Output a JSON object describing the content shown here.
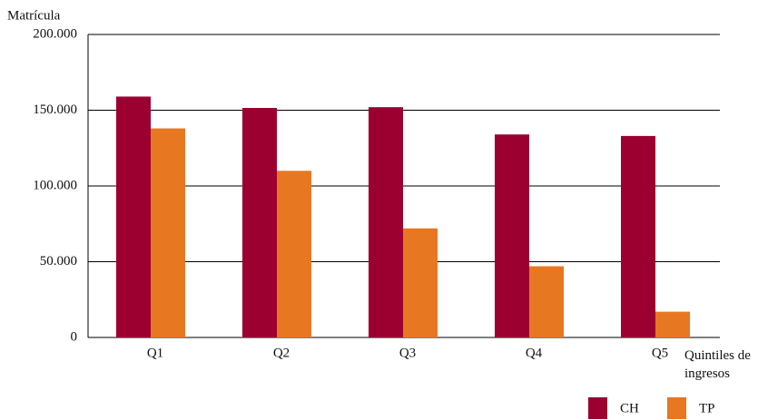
{
  "chart_data": {
    "type": "bar",
    "y_label": "Matrícula",
    "x_label": "Quintiles de ingresos",
    "categories": [
      "Q1",
      "Q2",
      "Q3",
      "Q4",
      "Q5"
    ],
    "series": [
      {
        "name": "CH",
        "color": "#9b0031",
        "values": [
          159000,
          151500,
          152000,
          134000,
          133000
        ]
      },
      {
        "name": "TP",
        "color": "#e87722",
        "values": [
          138000,
          110000,
          72000,
          47000,
          17000
        ]
      }
    ],
    "ylim": [
      0,
      200000
    ],
    "yticks": [
      0,
      {
        "value": 50000,
        "label": "50.000"
      },
      {
        "value": 100000,
        "label": "100.000"
      },
      {
        "value": 150000,
        "label": "150.000"
      },
      {
        "value": 200000,
        "label": "200.000"
      }
    ],
    "grid": true,
    "legend": "bottom-right"
  }
}
